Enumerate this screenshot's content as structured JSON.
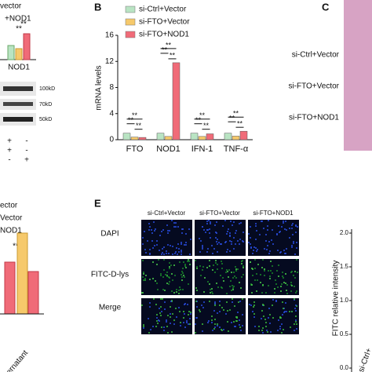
{
  "chart_data": {
    "type": "bar",
    "panel": "B",
    "y_label": "mRNA levels",
    "categories": [
      "FTO",
      "NOD1",
      "IFN-1",
      "TNF-α"
    ],
    "series": [
      {
        "name": "si-Ctrl+Vector",
        "color": "#b9e4c3",
        "values": [
          1,
          1,
          1,
          1
        ]
      },
      {
        "name": "si-FTO+Vector",
        "color": "#f6c96b",
        "values": [
          0.4,
          0.5,
          0.5,
          0.55
        ]
      },
      {
        "name": "si-FTO+NOD1",
        "color": "#f06b78",
        "values": [
          0.35,
          11.8,
          0.9,
          1.3
        ]
      }
    ],
    "ylim": [
      0,
      16
    ],
    "yticks": [
      0,
      4,
      8,
      12,
      16
    ],
    "significance": [
      [
        "**",
        "**",
        "**"
      ],
      [
        "**",
        "**",
        "**"
      ],
      [
        "**",
        "**",
        "**"
      ],
      [
        "**",
        "**",
        "**"
      ]
    ]
  },
  "panel_a": {
    "legend": [
      "vector",
      "+NOD1"
    ],
    "stars": [
      "**",
      "**"
    ],
    "axis_label": "NOD1",
    "markers": [
      "100kD",
      "70kD",
      "50kD"
    ],
    "signs": [
      [
        "+",
        "-"
      ],
      [
        "+",
        "-"
      ],
      [
        "-",
        "+"
      ]
    ]
  },
  "panel_c": {
    "letter": "C",
    "labels": [
      "si-Ctrl+Vector",
      "si-FTO+Vector",
      "si-FTO+NOD1"
    ]
  },
  "panel_d": {
    "legend": [
      "ector",
      "Vector",
      "NOD1"
    ],
    "stars": [
      "**",
      "**"
    ],
    "axis_label": "ernatant"
  },
  "panel_e": {
    "letter": "E",
    "columns": [
      "si-Ctrl+Vector",
      "si-FTO+Vector",
      "si-FTO+NOD1"
    ],
    "rows": [
      "DAPI",
      "FITC-D-lys",
      "Merge"
    ],
    "y_label": "FITC relative intensity",
    "yticks": [
      "2.0",
      "1.5",
      "1.0",
      "0.5",
      "0.0"
    ],
    "x_label": "si-Ctrl+"
  }
}
